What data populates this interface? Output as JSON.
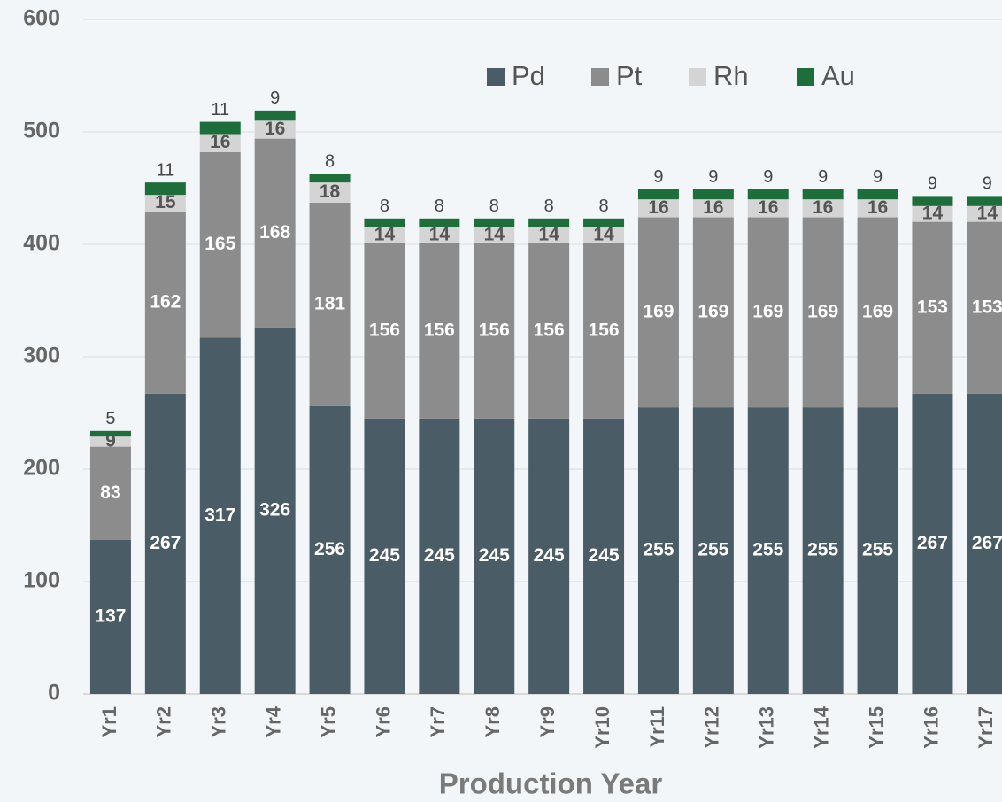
{
  "chart_data": {
    "type": "stacked_bar",
    "x_label": "Production Year",
    "categories": [
      "Yr1",
      "Yr2",
      "Yr3",
      "Yr4",
      "Yr5",
      "Yr6",
      "Yr7",
      "Yr8",
      "Yr9",
      "Yr10",
      "Yr11",
      "Yr12",
      "Yr13",
      "Yr14",
      "Yr15",
      "Yr16",
      "Yr17"
    ],
    "series": [
      {
        "name": "Pd",
        "color": "#4a5c66",
        "values": [
          137,
          267,
          317,
          326,
          256,
          245,
          245,
          245,
          245,
          245,
          255,
          255,
          255,
          255,
          255,
          267,
          267
        ]
      },
      {
        "name": "Pt",
        "color": "#8c8c8c",
        "values": [
          83,
          162,
          165,
          168,
          181,
          156,
          156,
          156,
          156,
          156,
          169,
          169,
          169,
          169,
          169,
          153,
          153
        ]
      },
      {
        "name": "Rh",
        "color": "#d4d4d4",
        "values": [
          9,
          15,
          16,
          16,
          18,
          14,
          14,
          14,
          14,
          14,
          16,
          16,
          16,
          16,
          16,
          14,
          14
        ]
      },
      {
        "name": "Au",
        "color": "#1d6e3a",
        "values": [
          5,
          11,
          11,
          9,
          8,
          8,
          8,
          8,
          8,
          8,
          9,
          9,
          9,
          9,
          9,
          9,
          9
        ]
      }
    ],
    "ylim": [
      0,
      600
    ],
    "yticks": [
      0,
      100,
      200,
      300,
      400,
      500,
      600
    ],
    "grid": true,
    "legend": "top-right"
  }
}
